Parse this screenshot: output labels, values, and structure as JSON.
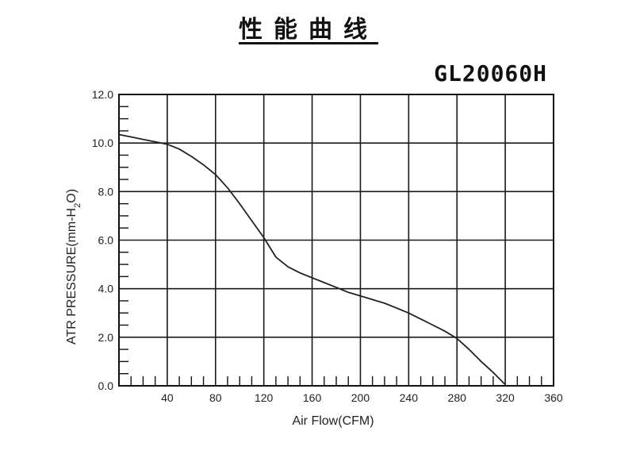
{
  "title": "性能曲线",
  "model": "GL20060H",
  "chart_data": {
    "type": "line",
    "title": "",
    "xlabel": "Air Flow(CFM)",
    "ylabel_parts": [
      "ATR PRESSURE(mm-H",
      "2",
      "O)"
    ],
    "xlim": [
      0,
      360
    ],
    "ylim": [
      0,
      12
    ],
    "x_ticks": [
      40,
      80,
      120,
      160,
      200,
      240,
      280,
      320,
      360
    ],
    "y_ticks": [
      "0.0",
      "2.0",
      "4.0",
      "6.0",
      "8.0",
      "10.0",
      "12.0"
    ],
    "grid": true,
    "series": [
      {
        "x": [
          0,
          10,
          20,
          30,
          40,
          50,
          60,
          70,
          80,
          90,
          100,
          110,
          120,
          130,
          140,
          150,
          160,
          170,
          180,
          190,
          200,
          210,
          220,
          230,
          240,
          250,
          260,
          270,
          280,
          290,
          300,
          310,
          320
        ],
        "y": [
          10.35,
          10.25,
          10.15,
          10.05,
          9.95,
          9.75,
          9.45,
          9.1,
          8.7,
          8.15,
          7.5,
          6.8,
          6.1,
          5.3,
          4.9,
          4.65,
          4.45,
          4.25,
          4.05,
          3.85,
          3.7,
          3.55,
          3.4,
          3.2,
          3.0,
          2.75,
          2.5,
          2.25,
          1.95,
          1.5,
          1.0,
          0.55,
          0.05
        ]
      }
    ]
  }
}
